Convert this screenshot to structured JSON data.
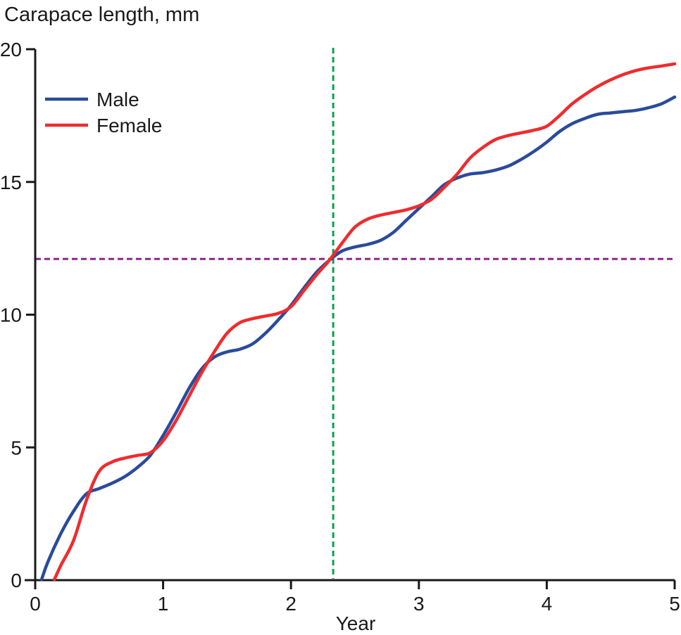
{
  "chart_data": {
    "type": "line",
    "title": "Carapace length, mm",
    "xlabel": "Year",
    "ylabel": "Carapace length, mm",
    "xlim": [
      0,
      5
    ],
    "ylim": [
      0,
      20
    ],
    "xticks": [
      "0",
      "1",
      "2",
      "3",
      "4",
      "5"
    ],
    "yticks": [
      "0",
      "5",
      "10",
      "15",
      "20"
    ],
    "grid": false,
    "legend_position": "top-left",
    "axis_color": "#1a1a1a",
    "background_color": "#ffffff",
    "series": [
      {
        "name": "Male",
        "color": "#2a4b9c",
        "points": [
          [
            0.05,
            0
          ],
          [
            0.1,
            0.7
          ],
          [
            0.2,
            1.75
          ],
          [
            0.3,
            2.6
          ],
          [
            0.4,
            3.25
          ],
          [
            0.5,
            3.45
          ],
          [
            0.6,
            3.65
          ],
          [
            0.7,
            3.9
          ],
          [
            0.8,
            4.25
          ],
          [
            0.9,
            4.7
          ],
          [
            1.0,
            5.45
          ],
          [
            1.1,
            6.3
          ],
          [
            1.2,
            7.2
          ],
          [
            1.3,
            7.95
          ],
          [
            1.4,
            8.4
          ],
          [
            1.5,
            8.6
          ],
          [
            1.6,
            8.7
          ],
          [
            1.7,
            8.9
          ],
          [
            1.8,
            9.3
          ],
          [
            1.9,
            9.8
          ],
          [
            2.0,
            10.35
          ],
          [
            2.1,
            11.0
          ],
          [
            2.2,
            11.6
          ],
          [
            2.3,
            12.05
          ],
          [
            2.4,
            12.4
          ],
          [
            2.5,
            12.55
          ],
          [
            2.6,
            12.65
          ],
          [
            2.7,
            12.8
          ],
          [
            2.8,
            13.1
          ],
          [
            2.9,
            13.55
          ],
          [
            3.0,
            14.0
          ],
          [
            3.1,
            14.45
          ],
          [
            3.2,
            14.9
          ],
          [
            3.3,
            15.15
          ],
          [
            3.4,
            15.3
          ],
          [
            3.5,
            15.35
          ],
          [
            3.6,
            15.45
          ],
          [
            3.7,
            15.6
          ],
          [
            3.8,
            15.85
          ],
          [
            3.9,
            16.15
          ],
          [
            4.0,
            16.5
          ],
          [
            4.1,
            16.9
          ],
          [
            4.2,
            17.2
          ],
          [
            4.3,
            17.4
          ],
          [
            4.4,
            17.55
          ],
          [
            4.5,
            17.6
          ],
          [
            4.6,
            17.65
          ],
          [
            4.7,
            17.7
          ],
          [
            4.8,
            17.8
          ],
          [
            4.9,
            17.95
          ],
          [
            5.0,
            18.2
          ]
        ]
      },
      {
        "name": "Female",
        "color": "#ee2c2e",
        "points": [
          [
            0.15,
            0
          ],
          [
            0.2,
            0.55
          ],
          [
            0.3,
            1.5
          ],
          [
            0.4,
            3.0
          ],
          [
            0.5,
            4.1
          ],
          [
            0.6,
            4.45
          ],
          [
            0.7,
            4.6
          ],
          [
            0.8,
            4.7
          ],
          [
            0.9,
            4.8
          ],
          [
            1.0,
            5.25
          ],
          [
            1.1,
            6.0
          ],
          [
            1.2,
            6.9
          ],
          [
            1.3,
            7.8
          ],
          [
            1.4,
            8.6
          ],
          [
            1.5,
            9.3
          ],
          [
            1.6,
            9.7
          ],
          [
            1.7,
            9.85
          ],
          [
            1.8,
            9.95
          ],
          [
            1.9,
            10.05
          ],
          [
            2.0,
            10.3
          ],
          [
            2.1,
            10.9
          ],
          [
            2.2,
            11.5
          ],
          [
            2.3,
            12.05
          ],
          [
            2.4,
            12.7
          ],
          [
            2.5,
            13.3
          ],
          [
            2.6,
            13.6
          ],
          [
            2.7,
            13.75
          ],
          [
            2.8,
            13.85
          ],
          [
            2.9,
            13.95
          ],
          [
            3.0,
            14.1
          ],
          [
            3.1,
            14.35
          ],
          [
            3.2,
            14.8
          ],
          [
            3.3,
            15.3
          ],
          [
            3.4,
            15.9
          ],
          [
            3.5,
            16.3
          ],
          [
            3.6,
            16.6
          ],
          [
            3.7,
            16.75
          ],
          [
            3.8,
            16.85
          ],
          [
            3.9,
            16.95
          ],
          [
            4.0,
            17.1
          ],
          [
            4.1,
            17.5
          ],
          [
            4.2,
            17.95
          ],
          [
            4.3,
            18.3
          ],
          [
            4.4,
            18.6
          ],
          [
            4.5,
            18.85
          ],
          [
            4.6,
            19.05
          ],
          [
            4.7,
            19.2
          ],
          [
            4.8,
            19.3
          ],
          [
            4.9,
            19.37
          ],
          [
            5.0,
            19.45
          ]
        ]
      }
    ],
    "reference_lines": [
      {
        "orientation": "vertical",
        "value": 2.33,
        "color": "#0aa14e",
        "dash": "8 5"
      },
      {
        "orientation": "horizontal",
        "value": 12.1,
        "color": "#8e2490",
        "dash": "8 5"
      }
    ]
  }
}
